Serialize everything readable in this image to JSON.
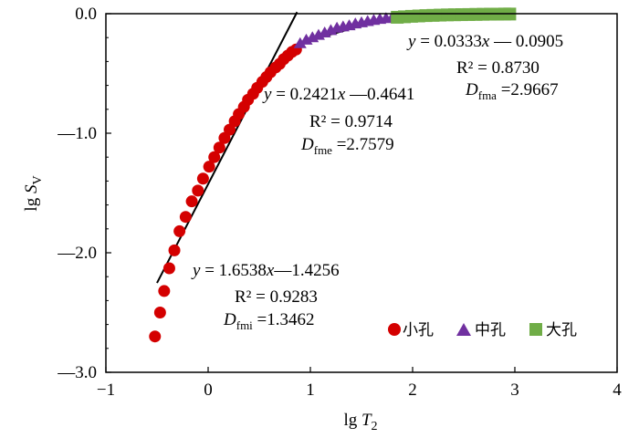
{
  "chart_data": {
    "type": "scatter",
    "title": "",
    "xlabel": {
      "prefix": "lg ",
      "var": "T",
      "sub": "2"
    },
    "ylabel": {
      "prefix": "lg ",
      "var": "S",
      "sub": "V"
    },
    "xlim": [
      -1,
      4
    ],
    "ylim": [
      -3.0,
      0.0
    ],
    "x_ticks": [
      -1,
      0,
      1,
      2,
      3,
      4
    ],
    "x_tick_labels": [
      "−1",
      "0",
      "1",
      "2",
      "3",
      "4"
    ],
    "y_ticks": [
      0.0,
      -1.0,
      -2.0,
      -3.0
    ],
    "y_tick_labels": [
      "0.0",
      "—1.0",
      "—2.0",
      "—3.0"
    ],
    "grid": false,
    "legend_position": "bottom-right",
    "colors": {
      "small": "#d40000",
      "medium": "#7030a0",
      "large": "#70ad47",
      "fit": "#000000"
    },
    "series": [
      {
        "name": "小孔",
        "marker": "circle",
        "x": [
          -0.52,
          -0.47,
          -0.43,
          -0.38,
          -0.33,
          -0.28,
          -0.22,
          -0.16,
          -0.1,
          -0.05,
          0.01,
          0.06,
          0.11,
          0.16,
          0.21,
          0.26,
          0.3,
          0.35,
          0.39,
          0.44,
          0.48,
          0.53,
          0.57,
          0.61,
          0.66,
          0.7,
          0.74,
          0.78,
          0.82,
          0.86
        ],
        "y": [
          -2.7,
          -2.5,
          -2.32,
          -2.13,
          -1.98,
          -1.82,
          -1.7,
          -1.57,
          -1.48,
          -1.38,
          -1.28,
          -1.2,
          -1.12,
          -1.04,
          -0.97,
          -0.9,
          -0.84,
          -0.78,
          -0.72,
          -0.67,
          -0.62,
          -0.57,
          -0.53,
          -0.49,
          -0.45,
          -0.42,
          -0.38,
          -0.35,
          -0.32,
          -0.3
        ]
      },
      {
        "name": "中孔",
        "marker": "triangle",
        "x": [
          0.9,
          0.96,
          1.02,
          1.08,
          1.14,
          1.2,
          1.26,
          1.32,
          1.38,
          1.44,
          1.5,
          1.56,
          1.62,
          1.68,
          1.74,
          1.8
        ],
        "y": [
          -0.25,
          -0.22,
          -0.2,
          -0.18,
          -0.16,
          -0.14,
          -0.12,
          -0.11,
          -0.1,
          -0.085,
          -0.075,
          -0.065,
          -0.055,
          -0.047,
          -0.04,
          -0.033
        ]
      },
      {
        "name": "大孔",
        "marker": "square",
        "x": [
          1.85,
          1.92,
          1.99,
          2.06,
          2.13,
          2.2,
          2.27,
          2.34,
          2.41,
          2.48,
          2.55,
          2.62,
          2.69,
          2.76,
          2.83,
          2.9,
          2.95
        ],
        "y": [
          -0.03,
          -0.026,
          -0.022,
          -0.019,
          -0.016,
          -0.014,
          -0.012,
          -0.01,
          -0.009,
          -0.008,
          -0.007,
          -0.006,
          -0.005,
          -0.004,
          -0.004,
          -0.003,
          -0.003
        ]
      }
    ],
    "fit_lines": [
      {
        "name": "small",
        "slope": 1.6538,
        "intercept": -1.4256,
        "x_range": [
          -0.5,
          0.87
        ]
      },
      {
        "name": "medium",
        "slope": 0.2421,
        "intercept": -0.4641,
        "x_range": [
          0.88,
          1.8
        ]
      },
      {
        "name": "large",
        "slope": 0.0333,
        "intercept": -0.0905,
        "x_range": [
          1.8,
          2.92
        ]
      }
    ],
    "annotations": {
      "large": {
        "eq": [
          "y",
          " = 0.0333",
          "x",
          " — 0.0905"
        ],
        "r2": "R² = 0.8730",
        "d_main": "D",
        "d_sub": "fma",
        "d_val": " =2.9667"
      },
      "medium": {
        "eq": [
          "y",
          " = 0.2421",
          "x",
          " —0.4641"
        ],
        "r2": "R² = 0.9714",
        "d_main": "D",
        "d_sub": "fme",
        "d_val": " =2.7579"
      },
      "small": {
        "eq": [
          "y",
          " = 1.6538",
          "x",
          "—1.4256"
        ],
        "r2": "R² = 0.9283",
        "d_main": "D",
        "d_sub": "fmi",
        "d_val": " =1.3462"
      }
    }
  }
}
